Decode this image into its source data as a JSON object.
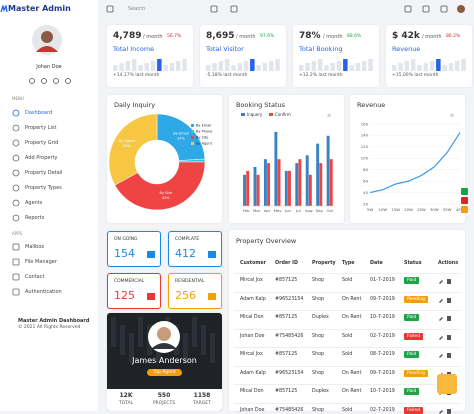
{
  "brand": "Master Admin",
  "search_placeholder": "Search",
  "user": {
    "name": "Johan Doe"
  },
  "nav_heading": "MENU",
  "nav": [
    "Dashboard",
    "Property List",
    "Property Grid",
    "Add Property",
    "Property Detail",
    "Property Types",
    "Agents",
    "Reports"
  ],
  "apps_heading": "APPS",
  "apps": [
    "Mailbox",
    "File Manager",
    "Contact",
    "Authentication"
  ],
  "footer": {
    "title": "Master Admin Dashboard",
    "copyright": "© 2021 All Rights Reserved"
  },
  "stats": [
    {
      "value": "4,789",
      "unit": "/ month",
      "change": "56.7%",
      "trend": "down",
      "label": "Total Income",
      "note": "+14.17% last month"
    },
    {
      "value": "8,695",
      "unit": "/ month",
      "change": "97.6%",
      "trend": "up",
      "label": "Total Visitor",
      "note": "-5.18% last month"
    },
    {
      "value": "78%",
      "unit": "/ month",
      "change": "88.6%",
      "trend": "up",
      "label": "Total Booking",
      "note": "+12.2% last month"
    },
    {
      "value": "$ 42k",
      "unit": "/ month",
      "change": "86.2%",
      "trend": "down",
      "label": "Revenue",
      "note": "+15.00% last month"
    }
  ],
  "chart_data": [
    {
      "type": "pie",
      "title": "Daily Inquiry",
      "categories": [
        "By Email",
        "By Phone",
        "By Site",
        "By Agent"
      ],
      "values": [
        24,
        1,
        42,
        33
      ],
      "value_labels": [
        "24%",
        "1%",
        "42%",
        "33%"
      ],
      "colors": [
        "#2ea8e6",
        "#26c6da",
        "#ef4444",
        "#f7c744"
      ],
      "donut": true
    },
    {
      "type": "bar",
      "title": "Booking Status",
      "categories": [
        "Feb",
        "Mar",
        "Apr",
        "May",
        "Jun",
        "Jul",
        "Aug",
        "Sep",
        "Oct"
      ],
      "series": [
        {
          "name": "Inquery",
          "color": "#3b82c4",
          "values": [
            40,
            50,
            60,
            95,
            45,
            55,
            65,
            80,
            90
          ]
        },
        {
          "name": "Confirm",
          "color": "#ef4444",
          "values": [
            45,
            40,
            55,
            60,
            45,
            60,
            40,
            55,
            60
          ]
        }
      ],
      "ylim": [
        0,
        100
      ]
    },
    {
      "type": "line",
      "title": "Revenue",
      "categories": [
        "5W",
        "10W",
        "15W",
        "20W",
        "25W",
        "30W",
        "35W",
        "40W"
      ],
      "values": [
        40,
        45,
        55,
        60,
        70,
        85,
        110,
        145
      ],
      "color": "#3a9be8",
      "ylim": [
        20,
        160
      ],
      "yticks": [
        20,
        40,
        60,
        80,
        100,
        120,
        140,
        160
      ],
      "grid": true
    }
  ],
  "tiles": [
    {
      "label": "ON GOING",
      "value": "154",
      "color": "#1e88e5"
    },
    {
      "label": "COMPLATE",
      "value": "412",
      "color": "#1e88e5"
    },
    {
      "label": "COMMERCIAL",
      "value": "125",
      "color": "#e53935"
    },
    {
      "label": "RESIDENTIAL",
      "value": "256",
      "color": "#f59e0b"
    }
  ],
  "agent": {
    "name": "James Anderson",
    "role": "Top Agent",
    "stats": [
      {
        "value": "12K",
        "label": "TOTAL"
      },
      {
        "value": "550",
        "label": "PROJECTS"
      },
      {
        "value": "1158",
        "label": "TARGET"
      }
    ]
  },
  "table": {
    "title": "Property Overview",
    "headers": [
      "Customer",
      "Order ID",
      "Property",
      "Type",
      "Date",
      "Status",
      "Actions"
    ],
    "rows": [
      [
        "Mircal Jox",
        "#857125",
        "Shop",
        "Sold",
        "01-7-2019",
        "Paid"
      ],
      [
        "Adam Kalp",
        "#96523154",
        "Shop",
        "On Rent",
        "09-7-2019",
        "Pending"
      ],
      [
        "Mical Don",
        "#857125",
        "Duplex",
        "On Rent",
        "10-7-2019",
        "Paid"
      ],
      [
        "Johan Doe",
        "#75485426",
        "Shop",
        "Sold",
        "02-7-2019",
        "Failed"
      ],
      [
        "Mircal Jox",
        "#857125",
        "Shop",
        "Sold",
        "08-7-2019",
        "Paid"
      ],
      [
        "Adam Kalp",
        "#96523154",
        "Shop",
        "On Rent",
        "09-7-2019",
        "Pending"
      ],
      [
        "Mical Don",
        "#857125",
        "Duplex",
        "On Rent",
        "10-7-2019",
        "Paid"
      ],
      [
        "Johan Doe",
        "#75485426",
        "Shop",
        "Sold",
        "02-7-2019",
        "Failed"
      ]
    ]
  }
}
